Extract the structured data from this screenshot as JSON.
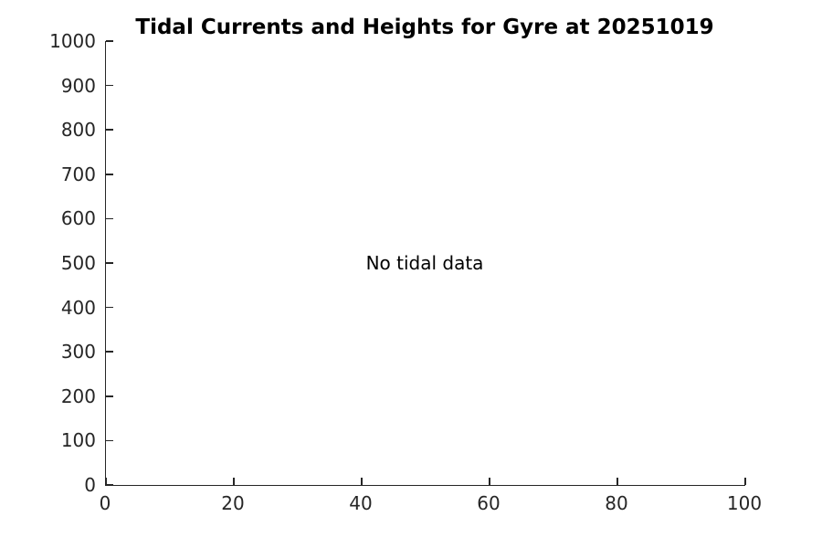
{
  "figure": {
    "background": "#ffffff"
  },
  "chart_data": {
    "type": "line",
    "title": "Tidal Currents and Heights for Gyre at 20251019",
    "xlabel": "",
    "ylabel": "",
    "xlim": [
      0,
      100
    ],
    "ylim": [
      0,
      1000
    ],
    "xticks": [
      0,
      20,
      40,
      60,
      80,
      100
    ],
    "yticks": [
      0,
      100,
      200,
      300,
      400,
      500,
      600,
      700,
      800,
      900,
      1000
    ],
    "series": [],
    "annotations": [
      {
        "text": "No tidal data",
        "x": 50,
        "y": 500
      }
    ],
    "grid": false,
    "legend": null,
    "tick_direction": "in",
    "axis_color": "#262626",
    "tick_label_color": "#262626",
    "title_color": "#000000",
    "annotation_color": "#000000"
  }
}
